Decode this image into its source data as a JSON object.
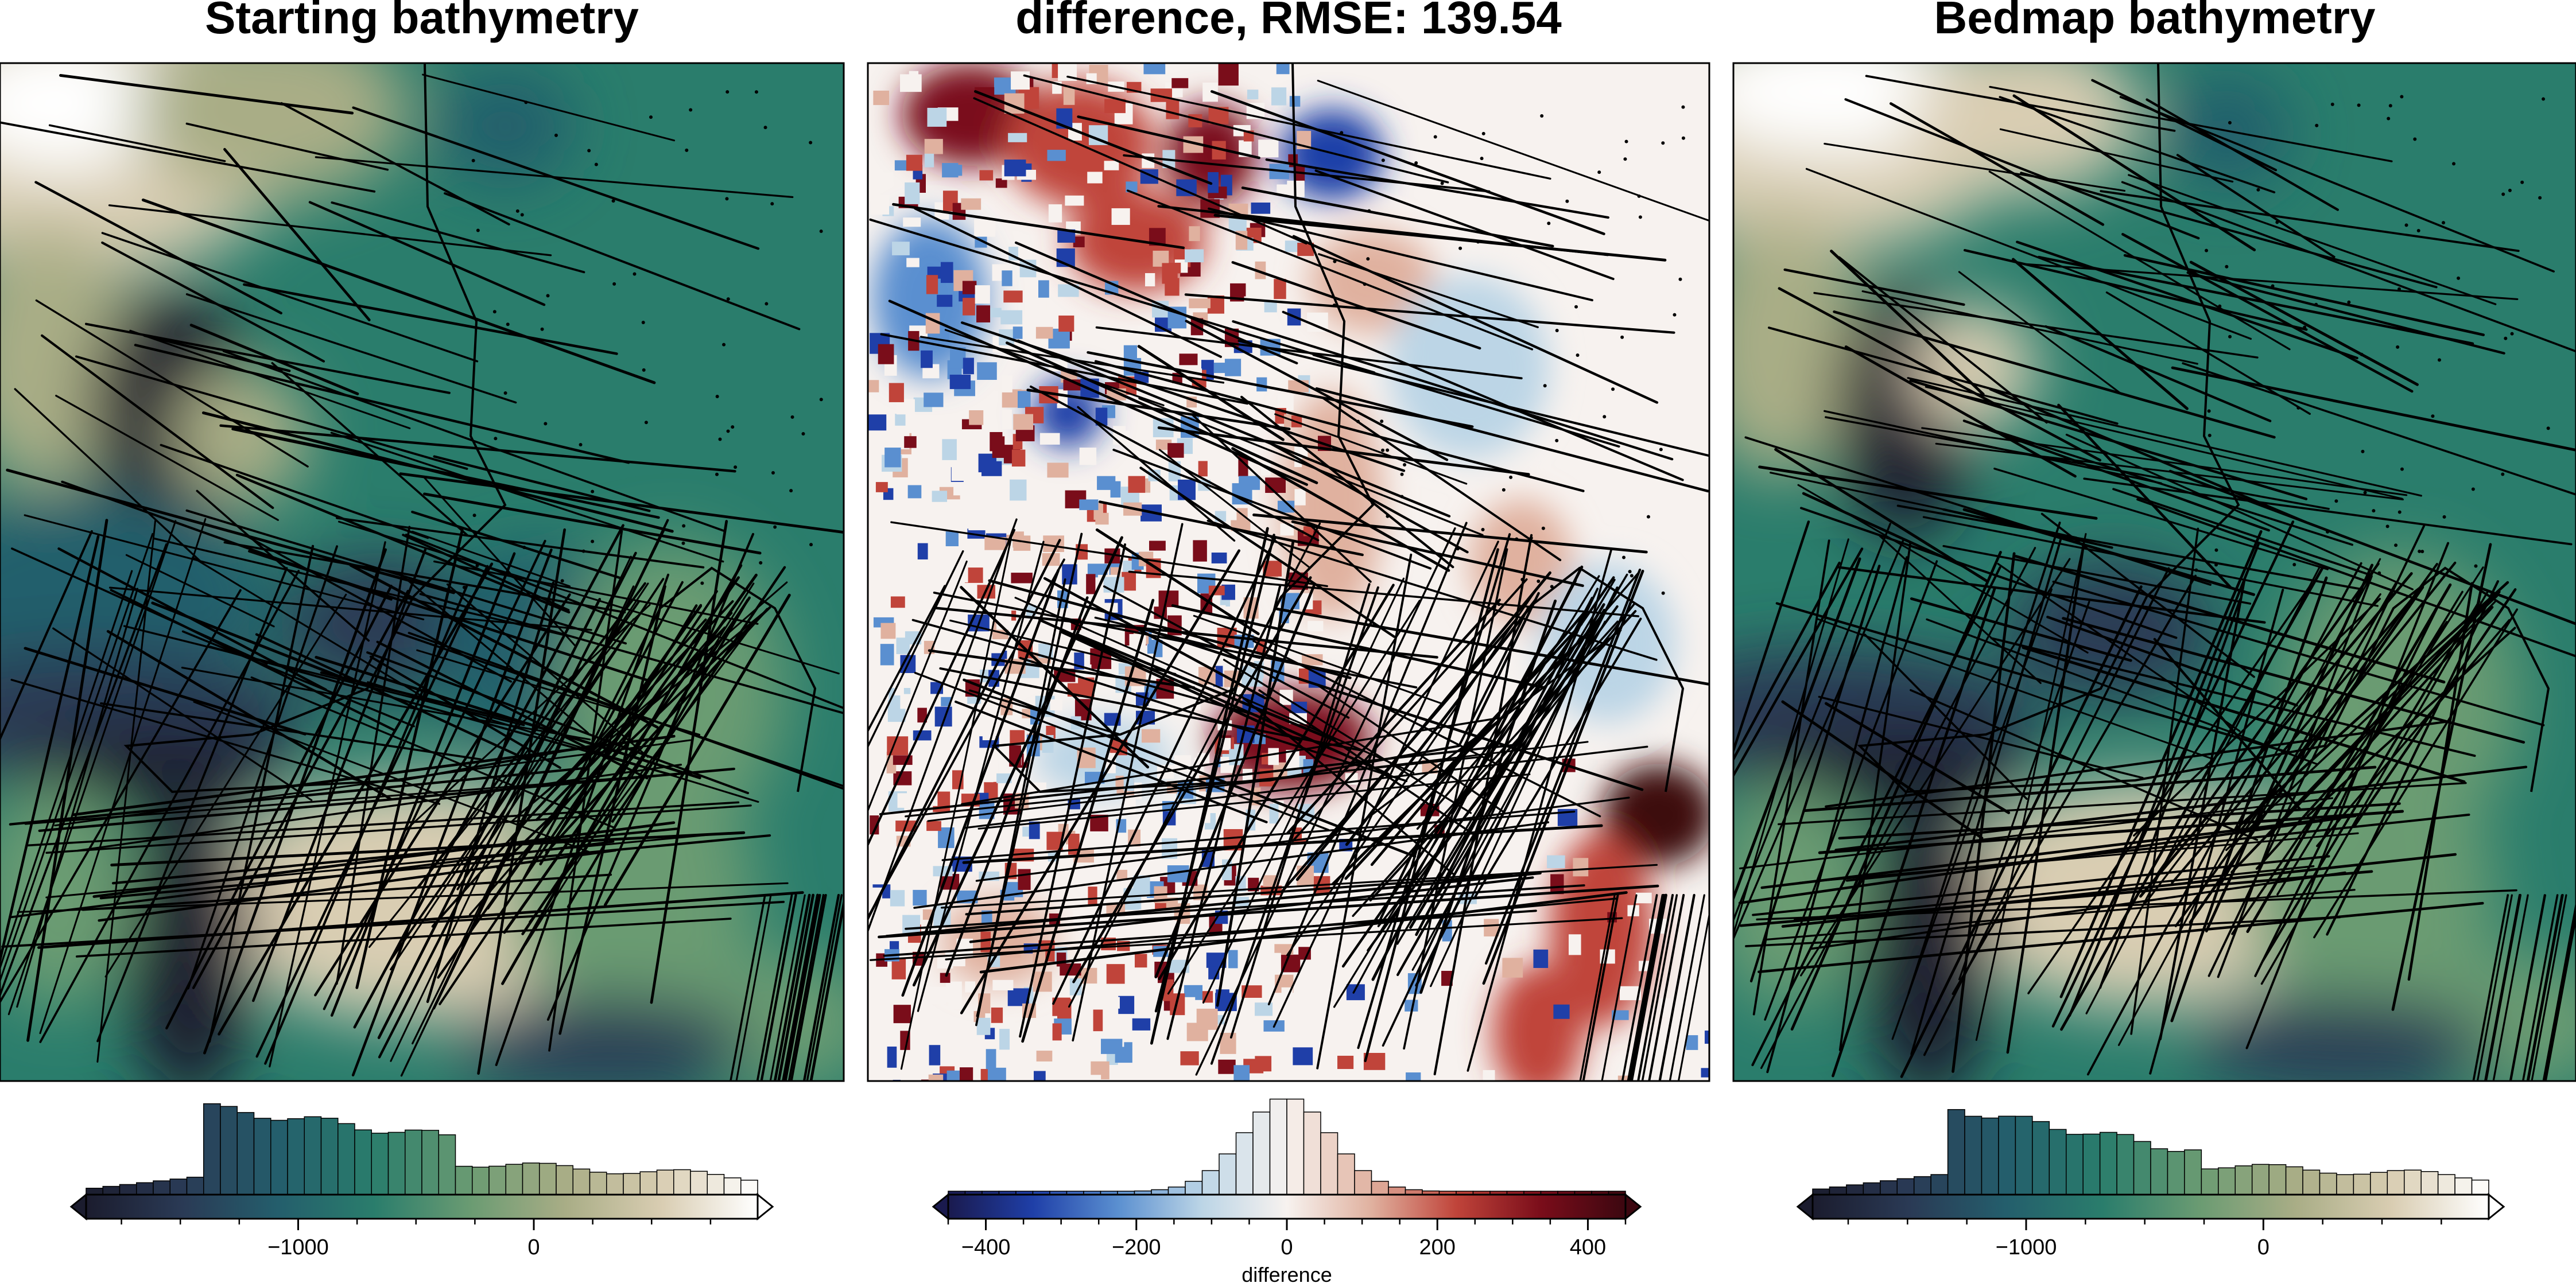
{
  "chart_data": [
    {
      "type": "heatmap",
      "title": "Starting bathymetry",
      "colormap": "topo",
      "colorbar": {
        "ticks": [
          -1000,
          0
        ],
        "tick_labels": [
          "−1000",
          "0"
        ],
        "label": "",
        "range": [
          -1900,
          950
        ],
        "histogram_bins": 40,
        "extend": "both"
      },
      "overlay": "survey track lines (black)"
    },
    {
      "type": "heatmap",
      "title": "difference, RMSE: 139.54",
      "colormap": "balance",
      "colorbar": {
        "ticks": [
          -400,
          -200,
          0,
          200,
          400
        ],
        "tick_labels": [
          "−400",
          "−200",
          "0",
          "200",
          "400"
        ],
        "label": "difference",
        "range": [
          -450,
          450
        ],
        "histogram_bins": 40,
        "extend": "both"
      },
      "overlay": "survey track lines (black)"
    },
    {
      "type": "heatmap",
      "title": "Bedmap bathymetry",
      "colormap": "topo",
      "colorbar": {
        "ticks": [
          -1000,
          0
        ],
        "tick_labels": [
          "−1000",
          "0"
        ],
        "label": "",
        "range": [
          -1900,
          950
        ],
        "histogram_bins": 40,
        "extend": "both"
      },
      "overlay": "survey track lines (black)"
    }
  ],
  "colors": {
    "topo_stops": [
      "#1b1c2e",
      "#2a3a55",
      "#245e6c",
      "#2a7d6c",
      "#6a9b72",
      "#a9ad86",
      "#d9cdb2",
      "#ffffff"
    ],
    "diff_stops": [
      "#1a1a4e",
      "#1f3fa8",
      "#5a8fd0",
      "#bcd5e6",
      "#f7f2ef",
      "#e0b19f",
      "#c0443a",
      "#7a0d1a",
      "#3c0710"
    ],
    "track": "#000000"
  }
}
